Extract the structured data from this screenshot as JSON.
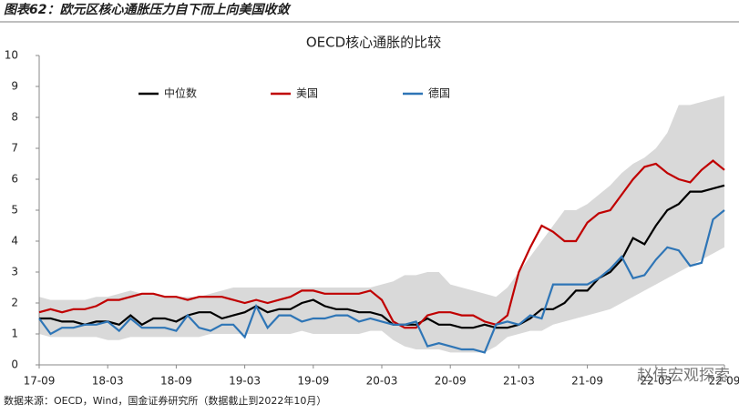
{
  "header": "图表62：欧元区核心通胀压力自下而上向美国收敛",
  "footer": "数据来源：OECD，Wind，国金证券研究所（数据截止到2022年10月）",
  "watermark": "赵伟宏观探索",
  "chart_data": {
    "type": "line",
    "title": "OECD核心通胀的比较",
    "categories": [
      "17-09",
      null,
      null,
      null,
      null,
      null,
      "18-03",
      null,
      null,
      null,
      null,
      null,
      "18-09",
      null,
      null,
      null,
      null,
      null,
      "19-03",
      null,
      null,
      null,
      null,
      null,
      "19-09",
      null,
      null,
      null,
      null,
      null,
      "20-03",
      null,
      null,
      null,
      null,
      null,
      "20-09",
      null,
      null,
      null,
      null,
      null,
      "21-03",
      null,
      null,
      null,
      null,
      null,
      "21-09",
      null,
      null,
      null,
      null,
      null,
      "22-03",
      null,
      null,
      null,
      null,
      null,
      "22-09"
    ],
    "ylim": [
      0,
      10
    ],
    "yticks": [
      0,
      1,
      2,
      3,
      4,
      5,
      6,
      7,
      8,
      9,
      10
    ],
    "band": {
      "color": "#d9d9d9",
      "upper": [
        2.2,
        2.1,
        2.1,
        2.1,
        2.1,
        2.2,
        2.2,
        2.3,
        2.4,
        2.3,
        2.3,
        2.2,
        2.2,
        2.2,
        2.2,
        2.3,
        2.4,
        2.5,
        2.5,
        2.5,
        2.5,
        2.5,
        2.5,
        2.5,
        2.5,
        2.5,
        2.5,
        2.5,
        2.5,
        2.5,
        2.6,
        2.7,
        2.9,
        2.9,
        3.0,
        3.0,
        2.6,
        2.5,
        2.4,
        2.3,
        2.2,
        2.5,
        3.0,
        3.5,
        4.0,
        4.5,
        5.0,
        5.0,
        5.2,
        5.5,
        5.8,
        6.2,
        6.5,
        6.7,
        7.0,
        7.5,
        8.4,
        8.4,
        8.5,
        8.6,
        8.7
      ],
      "lower": [
        1.0,
        0.9,
        0.9,
        0.9,
        0.9,
        0.9,
        0.8,
        0.8,
        0.9,
        0.9,
        0.9,
        0.9,
        0.9,
        0.9,
        0.9,
        1.0,
        1.0,
        1.0,
        1.0,
        1.0,
        1.0,
        1.0,
        1.0,
        1.1,
        1.0,
        1.0,
        1.0,
        1.0,
        1.0,
        1.1,
        1.1,
        0.8,
        0.6,
        0.5,
        0.5,
        0.5,
        0.4,
        0.4,
        0.4,
        0.4,
        0.6,
        0.9,
        1.0,
        1.1,
        1.1,
        1.3,
        1.4,
        1.5,
        1.6,
        1.7,
        1.8,
        2.0,
        2.2,
        2.4,
        2.6,
        2.8,
        3.0,
        3.2,
        3.4,
        3.6,
        3.8
      ]
    },
    "series": [
      {
        "name": "中位数",
        "color": "#000000",
        "values": [
          1.5,
          1.5,
          1.4,
          1.4,
          1.3,
          1.4,
          1.4,
          1.3,
          1.6,
          1.3,
          1.5,
          1.5,
          1.4,
          1.6,
          1.7,
          1.7,
          1.5,
          1.6,
          1.7,
          1.9,
          1.7,
          1.8,
          1.8,
          2.0,
          2.1,
          1.9,
          1.8,
          1.8,
          1.7,
          1.7,
          1.6,
          1.3,
          1.3,
          1.3,
          1.5,
          1.3,
          1.3,
          1.2,
          1.2,
          1.3,
          1.2,
          1.2,
          1.3,
          1.5,
          1.8,
          1.8,
          2.0,
          2.4,
          2.4,
          2.8,
          3.0,
          3.4,
          4.1,
          3.9,
          4.5,
          5.0,
          5.2,
          5.6,
          5.6,
          5.7,
          5.8
        ]
      },
      {
        "name": "美国",
        "color": "#c00000",
        "values": [
          1.7,
          1.8,
          1.7,
          1.8,
          1.8,
          1.9,
          2.1,
          2.1,
          2.2,
          2.3,
          2.3,
          2.2,
          2.2,
          2.1,
          2.2,
          2.2,
          2.2,
          2.1,
          2.0,
          2.1,
          2.0,
          2.1,
          2.2,
          2.4,
          2.4,
          2.3,
          2.3,
          2.3,
          2.3,
          2.4,
          2.1,
          1.4,
          1.2,
          1.2,
          1.6,
          1.7,
          1.7,
          1.6,
          1.6,
          1.4,
          1.3,
          1.6,
          3.0,
          3.8,
          4.5,
          4.3,
          4.0,
          4.0,
          4.6,
          4.9,
          5.0,
          5.5,
          6.0,
          6.4,
          6.5,
          6.2,
          6.0,
          5.9,
          6.3,
          6.6,
          6.3
        ]
      },
      {
        "name": "德国",
        "color": "#2e75b6",
        "values": [
          1.5,
          1.0,
          1.2,
          1.2,
          1.3,
          1.3,
          1.4,
          1.1,
          1.5,
          1.2,
          1.2,
          1.2,
          1.1,
          1.6,
          1.2,
          1.1,
          1.3,
          1.3,
          0.9,
          1.9,
          1.2,
          1.6,
          1.6,
          1.4,
          1.5,
          1.5,
          1.6,
          1.6,
          1.4,
          1.5,
          1.4,
          1.3,
          1.3,
          1.4,
          0.6,
          0.7,
          0.6,
          0.5,
          0.5,
          0.4,
          1.3,
          1.4,
          1.3,
          1.6,
          1.5,
          2.6,
          2.6,
          2.6,
          2.6,
          2.8,
          3.1,
          3.5,
          2.8,
          2.9,
          3.4,
          3.8,
          3.7,
          3.2,
          3.3,
          4.7,
          5.0
        ]
      }
    ]
  }
}
